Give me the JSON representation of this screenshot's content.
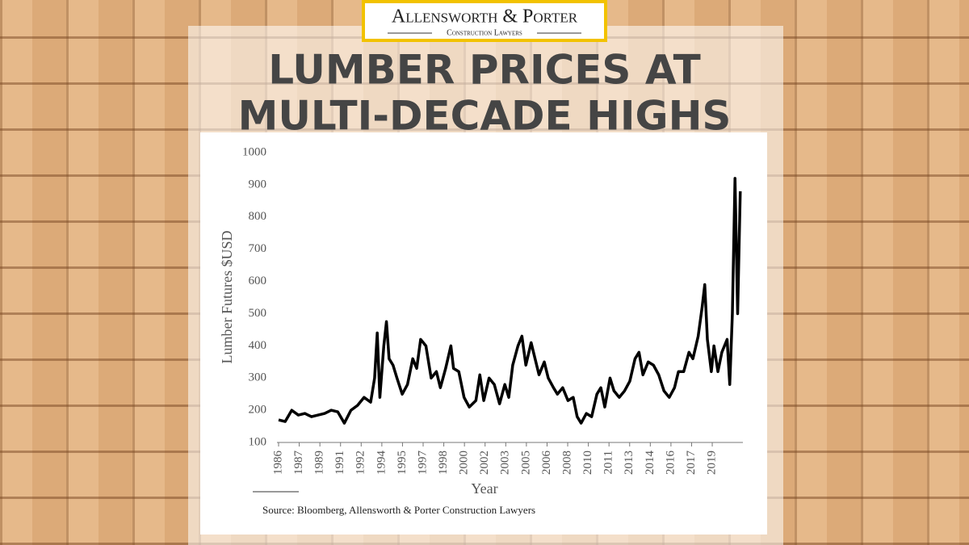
{
  "brand": {
    "name": "Allensworth & Porter",
    "tagline": "Construction Lawyers"
  },
  "headline": [
    "LUMBER PRICES AT",
    "MULTI-DECADE HIGHS"
  ],
  "chart_data": {
    "type": "line",
    "ylabel": "Lumber Futures $USD",
    "xlabel": "Year",
    "source": "Source: Bloomberg, Allensworth & Porter Construction Lawyers",
    "ylim": [
      100,
      1000
    ],
    "yticks": [
      100,
      200,
      300,
      400,
      500,
      600,
      700,
      800,
      900,
      1000
    ],
    "xlim": [
      1986,
      2021.3
    ],
    "xticks": [
      {
        "value": 1986,
        "label": "1986"
      },
      {
        "value": 1987.57,
        "label": "1987"
      },
      {
        "value": 1989.14,
        "label": "1989"
      },
      {
        "value": 1990.71,
        "label": "1991"
      },
      {
        "value": 1992.28,
        "label": "1992"
      },
      {
        "value": 1993.85,
        "label": "1994"
      },
      {
        "value": 1995.42,
        "label": "1995"
      },
      {
        "value": 1996.99,
        "label": "1997"
      },
      {
        "value": 1998.56,
        "label": "1998"
      },
      {
        "value": 2000.13,
        "label": "2000"
      },
      {
        "value": 2001.7,
        "label": "2002"
      },
      {
        "value": 2003.27,
        "label": "2003"
      },
      {
        "value": 2004.84,
        "label": "2005"
      },
      {
        "value": 2006.41,
        "label": "2006"
      },
      {
        "value": 2007.98,
        "label": "2008"
      },
      {
        "value": 2009.55,
        "label": "2010"
      },
      {
        "value": 2011.12,
        "label": "2011"
      },
      {
        "value": 2012.69,
        "label": "2013"
      },
      {
        "value": 2014.26,
        "label": "2014"
      },
      {
        "value": 2015.83,
        "label": "2016"
      },
      {
        "value": 2017.4,
        "label": "2017"
      },
      {
        "value": 2018.97,
        "label": "2019"
      }
    ],
    "x": [
      1986.0,
      1986.5,
      1987.0,
      1987.5,
      1988.0,
      1988.5,
      1989.0,
      1989.5,
      1990.0,
      1990.5,
      1991.0,
      1991.5,
      1992.0,
      1992.5,
      1993.0,
      1993.3,
      1993.5,
      1993.7,
      1994.0,
      1994.2,
      1994.4,
      1994.7,
      1995.0,
      1995.4,
      1995.8,
      1996.2,
      1996.5,
      1996.8,
      1997.2,
      1997.6,
      1998.0,
      1998.3,
      1998.7,
      1999.1,
      1999.3,
      1999.7,
      2000.1,
      2000.5,
      2001.0,
      2001.3,
      2001.6,
      2002.0,
      2002.4,
      2002.8,
      2003.2,
      2003.5,
      2003.8,
      2004.2,
      2004.5,
      2004.8,
      2005.2,
      2005.5,
      2005.8,
      2006.2,
      2006.5,
      2006.9,
      2007.2,
      2007.6,
      2008.0,
      2008.4,
      2008.7,
      2009.0,
      2009.4,
      2009.8,
      2010.2,
      2010.5,
      2010.8,
      2011.2,
      2011.5,
      2011.9,
      2012.3,
      2012.7,
      2013.1,
      2013.4,
      2013.7,
      2014.1,
      2014.5,
      2014.9,
      2015.3,
      2015.7,
      2016.1,
      2016.4,
      2016.8,
      2017.2,
      2017.5,
      2017.9,
      2018.2,
      2018.4,
      2018.6,
      2018.9,
      2019.1,
      2019.4,
      2019.7,
      2020.1,
      2020.3,
      2020.5,
      2020.7,
      2020.9,
      2021.1
    ],
    "series": [
      {
        "color": "#000000",
        "values": [
          170,
          165,
          200,
          185,
          190,
          180,
          185,
          190,
          200,
          195,
          160,
          200,
          215,
          240,
          225,
          300,
          440,
          240,
          400,
          475,
          360,
          340,
          300,
          250,
          280,
          360,
          330,
          420,
          400,
          300,
          320,
          270,
          330,
          400,
          330,
          320,
          240,
          210,
          230,
          310,
          230,
          300,
          280,
          220,
          280,
          240,
          340,
          400,
          430,
          340,
          410,
          360,
          310,
          350,
          300,
          270,
          250,
          270,
          230,
          240,
          180,
          160,
          190,
          180,
          250,
          270,
          210,
          300,
          260,
          240,
          260,
          290,
          360,
          380,
          310,
          350,
          340,
          310,
          260,
          240,
          270,
          320,
          320,
          380,
          360,
          430,
          520,
          590,
          420,
          320,
          400,
          320,
          380,
          420,
          280,
          500,
          920,
          500,
          880
        ]
      }
    ]
  }
}
